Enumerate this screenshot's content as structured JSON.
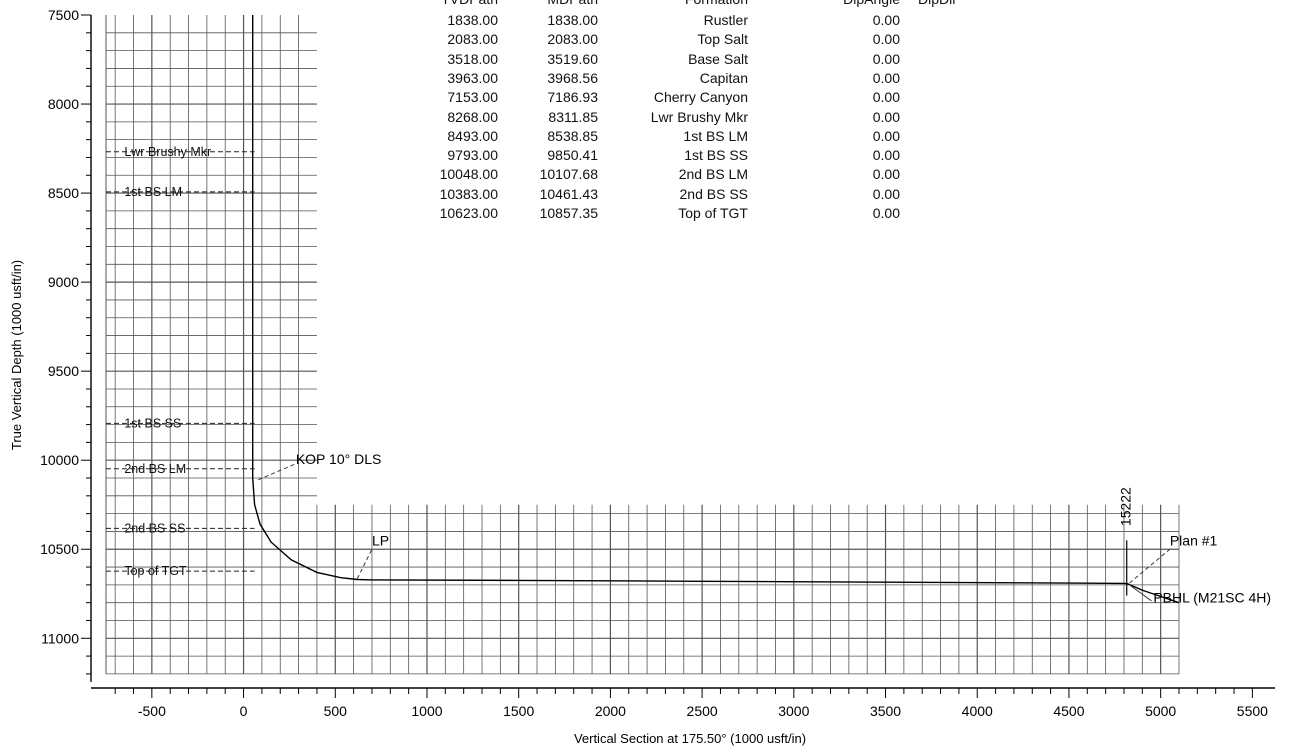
{
  "chart_data": {
    "type": "line",
    "xlabel": "Vertical Section at 175.50° (1000 usft/in)",
    "ylabel": "True Vertical Depth (1000 usft/in)",
    "xlim": [
      -750,
      5550
    ],
    "ylim": [
      11200,
      7500
    ],
    "x_ticks": [
      -500,
      0,
      500,
      1000,
      1500,
      2000,
      2500,
      3000,
      3500,
      4000,
      4500,
      5000,
      5500
    ],
    "y_ticks": [
      7500,
      8000,
      8500,
      9000,
      9500,
      10000,
      10500,
      11000
    ],
    "y_reversed": true,
    "grid": true,
    "series": [
      {
        "x": [
          50,
          50,
          60,
          90,
          150,
          260,
          400,
          530,
          620,
          700,
          1500,
          2500,
          3500,
          4500,
          4815,
          4900,
          5100
        ],
        "y": [
          7500,
          10100,
          10250,
          10360,
          10460,
          10560,
          10630,
          10660,
          10670,
          10672,
          10675,
          10680,
          10685,
          10690,
          10692,
          10730,
          10800
        ]
      }
    ],
    "formations": [
      {
        "name": "Lwr Brushy Mkr",
        "tvd": 8268
      },
      {
        "name": "1st BS LM",
        "tvd": 8493
      },
      {
        "name": "1st BS SS",
        "tvd": 9793
      },
      {
        "name": "2nd BS LM",
        "tvd": 10048
      },
      {
        "name": "2nd BS SS",
        "tvd": 10383
      },
      {
        "name": "Top of TGT",
        "tvd": 10623
      }
    ],
    "annotations": [
      {
        "text": "KOP 10° DLS",
        "x": 285,
        "y": 10022
      },
      {
        "text": "LP",
        "x": 700,
        "y": 10480
      },
      {
        "text": "15222",
        "x": 4815,
        "y": 10370
      },
      {
        "text": "Plan #1",
        "x": 5050,
        "y": 10480
      },
      {
        "text": "PBHL (M21SC 4H)",
        "x": 4960,
        "y": 10800
      }
    ],
    "table": {
      "headers": [
        "TVDPath",
        "MDPath",
        "Formation",
        "DipAngle",
        "DipDir"
      ],
      "rows": [
        [
          "1838.00",
          "1838.00",
          "Rustler",
          "0.00"
        ],
        [
          "2083.00",
          "2083.00",
          "Top Salt",
          "0.00"
        ],
        [
          "3518.00",
          "3519.60",
          "Base Salt",
          "0.00"
        ],
        [
          "3963.00",
          "3968.56",
          "Capitan",
          "0.00"
        ],
        [
          "7153.00",
          "7186.93",
          "Cherry Canyon",
          "0.00"
        ],
        [
          "8268.00",
          "8311.85",
          "Lwr Brushy Mkr",
          "0.00"
        ],
        [
          "8493.00",
          "8538.85",
          "1st BS LM",
          "0.00"
        ],
        [
          "9793.00",
          "9850.41",
          "1st BS SS",
          "0.00"
        ],
        [
          "10048.00",
          "10107.68",
          "2nd BS LM",
          "0.00"
        ],
        [
          "10383.00",
          "10461.43",
          "2nd BS SS",
          "0.00"
        ],
        [
          "10623.00",
          "10857.35",
          "Top of TGT",
          "0.00"
        ]
      ]
    }
  }
}
